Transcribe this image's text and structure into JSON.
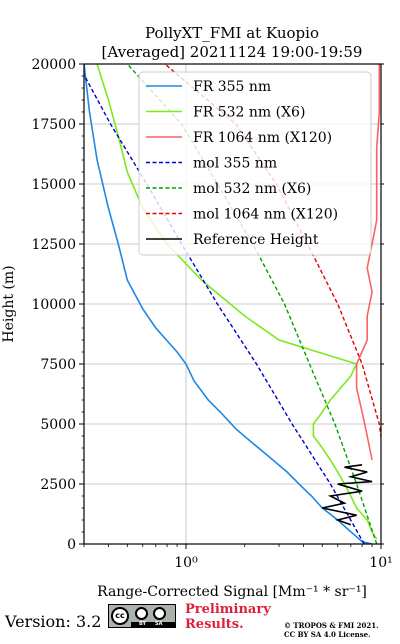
{
  "chart_data": {
    "type": "line",
    "title": "PollyXT_FMI at Kuopio",
    "subtitle": "[Averaged] 20211124 19:00-19:59",
    "xlabel": "Range-Corrected Signal [Mm⁻¹ * sr⁻¹]",
    "ylabel": "Height (m)",
    "xscale": "log",
    "xlim": [
      0.3,
      10
    ],
    "ylim": [
      0,
      20000
    ],
    "grid": true,
    "legend_position": "top-right",
    "x_tick_labels": [
      "10⁰",
      "10¹"
    ],
    "y_ticks": [
      0,
      2500,
      5000,
      7500,
      10000,
      12500,
      15000,
      17500,
      20000
    ],
    "y_tick_labels": [
      "0",
      "2500",
      "5000",
      "7500",
      "10000",
      "12500",
      "15000",
      "17500",
      "20000"
    ],
    "series": [
      {
        "name": "FR 355 nm",
        "color": "#1f88e5",
        "style": "solid",
        "points": [
          [
            9.0,
            0
          ],
          [
            8.0,
            100
          ],
          [
            7.5,
            300
          ],
          [
            6.8,
            600
          ],
          [
            6.0,
            1000
          ],
          [
            5.0,
            1500
          ],
          [
            4.4,
            2000
          ],
          [
            3.8,
            2500
          ],
          [
            3.3,
            3000
          ],
          [
            2.7,
            3600
          ],
          [
            2.2,
            4200
          ],
          [
            1.8,
            4800
          ],
          [
            1.5,
            5500
          ],
          [
            1.3,
            6000
          ],
          [
            1.1,
            6800
          ],
          [
            1.0,
            7500
          ],
          [
            0.9,
            8000
          ],
          [
            0.7,
            9000
          ],
          [
            0.6,
            9800
          ],
          [
            0.5,
            11000
          ],
          [
            0.45,
            12500
          ],
          [
            0.4,
            14000
          ],
          [
            0.35,
            16000
          ],
          [
            0.32,
            18000
          ],
          [
            0.3,
            20000
          ]
        ]
      },
      {
        "name": "FR 532 nm (X6)",
        "color": "#7bea1e",
        "style": "solid",
        "points": [
          [
            9.5,
            200
          ],
          [
            9.0,
            500
          ],
          [
            8.5,
            1000
          ],
          [
            7.5,
            1500
          ],
          [
            7.0,
            2000
          ],
          [
            6.5,
            2500
          ],
          [
            6.0,
            3000
          ],
          [
            5.5,
            3500
          ],
          [
            5.0,
            4000
          ],
          [
            4.5,
            4500
          ],
          [
            4.5,
            5000
          ],
          [
            5.0,
            5500
          ],
          [
            5.5,
            6000
          ],
          [
            7.0,
            7000
          ],
          [
            7.5,
            7500
          ],
          [
            3.0,
            8500
          ],
          [
            2.0,
            9500
          ],
          [
            1.2,
            11000
          ],
          [
            0.8,
            12500
          ],
          [
            0.6,
            14000
          ],
          [
            0.5,
            15500
          ],
          [
            0.45,
            17000
          ],
          [
            0.4,
            18500
          ],
          [
            0.35,
            20000
          ]
        ]
      },
      {
        "name": "FR 1064 nm (X120)",
        "color": "#f86464",
        "style": "solid",
        "points": [
          [
            9.0,
            3500
          ],
          [
            8.5,
            4500
          ],
          [
            8.0,
            5500
          ],
          [
            7.5,
            6500
          ],
          [
            7.5,
            7500
          ],
          [
            8.5,
            8500
          ],
          [
            8.5,
            9500
          ],
          [
            9.0,
            10500
          ],
          [
            8.5,
            11500
          ],
          [
            9.0,
            12500
          ],
          [
            9.5,
            13500
          ],
          [
            9.5,
            15000
          ],
          [
            9.5,
            16500
          ],
          [
            9.8,
            18000
          ],
          [
            9.8,
            20000
          ]
        ]
      },
      {
        "name": "mol 355 nm",
        "color": "#0000cc",
        "style": "dashed",
        "points": [
          [
            8.2,
            0
          ],
          [
            5.5,
            2500
          ],
          [
            3.5,
            5000
          ],
          [
            2.3,
            7500
          ],
          [
            1.45,
            10000
          ],
          [
            0.95,
            12500
          ],
          [
            0.63,
            15000
          ],
          [
            0.41,
            17500
          ],
          [
            0.28,
            20000
          ]
        ]
      },
      {
        "name": "mol 532 nm (X6)",
        "color": "#00a000",
        "style": "dashed",
        "points": [
          [
            9.5,
            0
          ],
          [
            7.5,
            2500
          ],
          [
            5.8,
            5000
          ],
          [
            4.3,
            7500
          ],
          [
            3.2,
            10000
          ],
          [
            2.2,
            12500
          ],
          [
            1.45,
            15000
          ],
          [
            0.95,
            17500
          ],
          [
            0.5,
            20000
          ]
        ]
      },
      {
        "name": "mol 1064 nm (X120)",
        "color": "#e00000",
        "style": "dashed",
        "points": [
          [
            11.0,
            2000
          ],
          [
            9.8,
            5000
          ],
          [
            8.0,
            7500
          ],
          [
            6.0,
            10000
          ],
          [
            4.2,
            12500
          ],
          [
            2.9,
            15000
          ],
          [
            1.8,
            17500
          ],
          [
            0.78,
            20000
          ]
        ]
      },
      {
        "name": "Reference Height",
        "color": "#000000",
        "style": "solid",
        "points": [
          [
            7.0,
            800
          ],
          [
            6.0,
            1000
          ],
          [
            7.5,
            1200
          ],
          [
            5.0,
            1500
          ],
          [
            6.5,
            1700
          ],
          [
            5.5,
            2000
          ],
          [
            8.0,
            2200
          ],
          [
            6.0,
            2500
          ],
          [
            9.0,
            2600
          ],
          [
            7.0,
            2800
          ],
          [
            8.5,
            3000
          ],
          [
            6.5,
            3200
          ],
          [
            8.0,
            3300
          ]
        ]
      }
    ]
  },
  "footer": {
    "version": "Version: 3.2",
    "license_cc": "cc",
    "license_by": "BY",
    "license_sa": "SA",
    "preliminary_line1": "Preliminary",
    "preliminary_line2": "Results.",
    "copyright_line1": "© TROPOS & FMI 2021.",
    "copyright_line2": "CC BY SA 4.0 License."
  }
}
